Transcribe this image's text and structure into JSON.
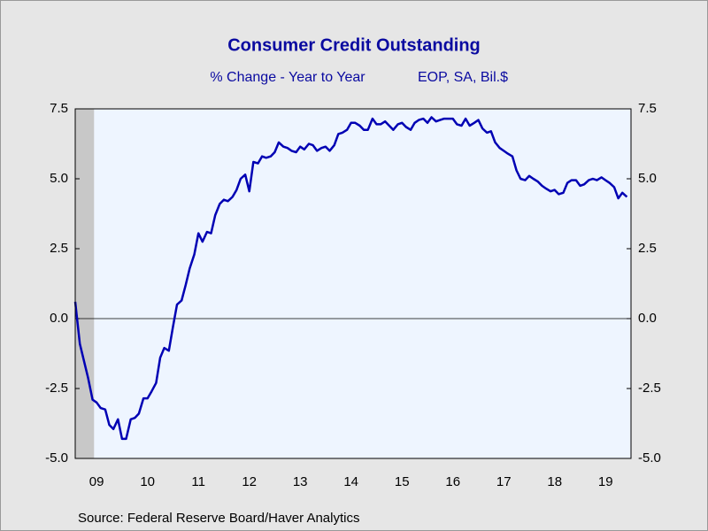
{
  "chart_data": {
    "type": "line",
    "title": "Consumer Credit Outstanding",
    "subtitle": "% Change - Year to Year",
    "subtitle_right": "EOP, SA, Bil.$",
    "source": "Source:  Federal Reserve Board/Haver Analytics",
    "color": "#0000b4",
    "shaded_x": [
      2009.08,
      2009.45
    ],
    "xlim": [
      2009.08,
      2020.0
    ],
    "xticks": [
      {
        "value": 2009.5,
        "label": "09"
      },
      {
        "value": 2010.5,
        "label": "10"
      },
      {
        "value": 2011.5,
        "label": "11"
      },
      {
        "value": 2012.5,
        "label": "12"
      },
      {
        "value": 2013.5,
        "label": "13"
      },
      {
        "value": 2014.5,
        "label": "14"
      },
      {
        "value": 2015.5,
        "label": "15"
      },
      {
        "value": 2016.5,
        "label": "16"
      },
      {
        "value": 2017.5,
        "label": "17"
      },
      {
        "value": 2018.5,
        "label": "18"
      },
      {
        "value": 2019.5,
        "label": "19"
      }
    ],
    "ylim": [
      -5,
      7.5
    ],
    "yticks": [
      7.5,
      {
        "value": 5,
        "label": "5.0"
      },
      2.5,
      {
        "value": 0,
        "label": "0.0"
      },
      -2.5,
      {
        "value": -5,
        "label": "-5.0"
      }
    ],
    "y2lim": [
      -5,
      7.5
    ],
    "y2ticks": [
      7.5,
      {
        "value": 5,
        "label": "5.0"
      },
      2.5,
      {
        "value": 0,
        "label": "0.0"
      },
      -2.5,
      {
        "value": -5,
        "label": "-5.0"
      }
    ],
    "x": [
      2009.08,
      2009.17,
      2009.25,
      2009.33,
      2009.42,
      2009.5,
      2009.58,
      2009.67,
      2009.75,
      2009.83,
      2009.92,
      2010.0,
      2010.08,
      2010.17,
      2010.25,
      2010.33,
      2010.42,
      2010.5,
      2010.58,
      2010.67,
      2010.75,
      2010.83,
      2010.92,
      2011.0,
      2011.08,
      2011.17,
      2011.25,
      2011.33,
      2011.42,
      2011.5,
      2011.58,
      2011.67,
      2011.75,
      2011.83,
      2011.92,
      2012.0,
      2012.08,
      2012.17,
      2012.25,
      2012.33,
      2012.42,
      2012.5,
      2012.58,
      2012.67,
      2012.75,
      2012.83,
      2012.92,
      2013.0,
      2013.08,
      2013.17,
      2013.25,
      2013.33,
      2013.42,
      2013.5,
      2013.58,
      2013.67,
      2013.75,
      2013.83,
      2013.92,
      2014.0,
      2014.08,
      2014.17,
      2014.25,
      2014.33,
      2014.42,
      2014.5,
      2014.58,
      2014.67,
      2014.75,
      2014.83,
      2014.92,
      2015.0,
      2015.08,
      2015.17,
      2015.25,
      2015.33,
      2015.42,
      2015.5,
      2015.58,
      2015.67,
      2015.75,
      2015.83,
      2015.92,
      2016.0,
      2016.08,
      2016.17,
      2016.25,
      2016.33,
      2016.42,
      2016.5,
      2016.58,
      2016.67,
      2016.75,
      2016.83,
      2016.92,
      2017.0,
      2017.08,
      2017.17,
      2017.25,
      2017.33,
      2017.42,
      2017.5,
      2017.58,
      2017.67,
      2017.75,
      2017.83,
      2017.92,
      2018.0,
      2018.08,
      2018.17,
      2018.25,
      2018.33,
      2018.42,
      2018.5,
      2018.58,
      2018.67,
      2018.75,
      2018.83,
      2018.92,
      2019.0,
      2019.08,
      2019.17,
      2019.25,
      2019.33,
      2019.42,
      2019.5,
      2019.58,
      2019.67,
      2019.75,
      2019.83,
      2019.92
    ],
    "values": [
      0.6,
      -0.9,
      -1.5,
      -2.1,
      -2.9,
      -3.0,
      -3.2,
      -3.25,
      -3.8,
      -3.95,
      -3.6,
      -4.3,
      -4.3,
      -3.6,
      -3.55,
      -3.4,
      -2.85,
      -2.85,
      -2.6,
      -2.3,
      -1.4,
      -1.05,
      -1.15,
      -0.3,
      0.5,
      0.65,
      1.2,
      1.8,
      2.3,
      3.05,
      2.75,
      3.1,
      3.05,
      3.7,
      4.1,
      4.25,
      4.2,
      4.35,
      4.6,
      5.0,
      5.15,
      4.55,
      5.6,
      5.55,
      5.8,
      5.75,
      5.8,
      5.95,
      6.3,
      6.15,
      6.1,
      6.0,
      5.95,
      6.15,
      6.05,
      6.25,
      6.2,
      6.0,
      6.1,
      6.15,
      6.0,
      6.2,
      6.6,
      6.65,
      6.75,
      7.0,
      7.0,
      6.9,
      6.75,
      6.75,
      7.15,
      6.95,
      6.95,
      7.05,
      6.9,
      6.75,
      6.95,
      7.0,
      6.85,
      6.75,
      7.0,
      7.1,
      7.15,
      7.0,
      7.2,
      7.05,
      7.1,
      7.15,
      7.15,
      7.15,
      6.95,
      6.9,
      7.15,
      6.9,
      7.0,
      7.1,
      6.8,
      6.65,
      6.7,
      6.3,
      6.1,
      6.0,
      5.9,
      5.8,
      5.3,
      5.0,
      4.95,
      5.1,
      5.0,
      4.9,
      4.75,
      4.65,
      4.55,
      4.6,
      4.45,
      4.5,
      4.85,
      4.95,
      4.95,
      4.75,
      4.8,
      4.95,
      5.0,
      4.95,
      5.05,
      4.95,
      4.85,
      4.7,
      4.3,
      4.5,
      4.35
    ]
  }
}
